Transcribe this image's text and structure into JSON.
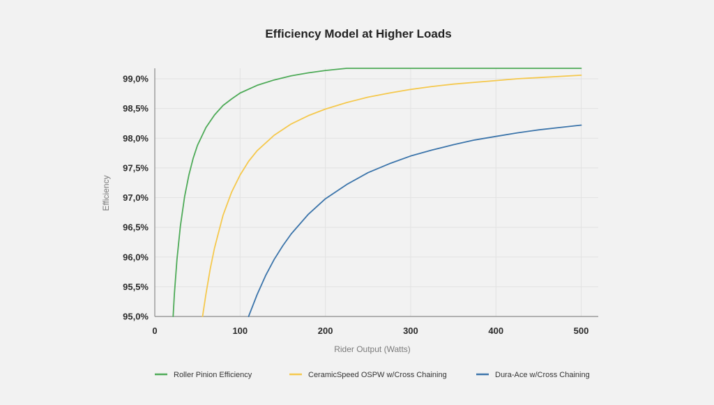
{
  "chart_data": {
    "type": "line",
    "title": "Efficiency Model at Higher Loads",
    "xlabel": "Rider Output (Watts)",
    "ylabel": "Efficiency",
    "xlim": [
      0,
      520
    ],
    "ylim": [
      95.0,
      99.2
    ],
    "x_ticks": [
      0,
      100,
      200,
      300,
      400,
      500
    ],
    "x_tick_labels": [
      "0",
      "100",
      "200",
      "300",
      "400",
      "500"
    ],
    "y_ticks": [
      95.0,
      95.5,
      96.0,
      96.5,
      97.0,
      97.5,
      98.0,
      98.5,
      99.0
    ],
    "y_tick_labels": [
      "95,0%",
      "95,5%",
      "96,0%",
      "96,5%",
      "97,0%",
      "97,5%",
      "98,0%",
      "98,5%",
      "99,0%"
    ],
    "grid": true,
    "legend_position": "bottom",
    "series": [
      {
        "name": "Roller Pinion Efficiency",
        "color": "#4daa57",
        "x": [
          21.5,
          23,
          26,
          30,
          35,
          40,
          45,
          50,
          60,
          70,
          80,
          90,
          100,
          120,
          140,
          160,
          180,
          200,
          225,
          250,
          275,
          300,
          325,
          350,
          375,
          400,
          425,
          450,
          475,
          500
        ],
        "y": [
          95.0,
          95.38,
          95.96,
          96.52,
          97.02,
          97.38,
          97.66,
          97.88,
          98.18,
          98.39,
          98.55,
          98.66,
          98.76,
          98.89,
          98.98,
          99.05,
          99.1,
          99.14,
          99.18,
          99.21,
          99.24,
          99.26,
          99.28,
          99.3,
          99.31,
          99.32,
          99.33,
          99.34,
          99.35,
          99.36
        ]
      },
      {
        "name": "CeramicSpeed OSPW w/Cross Chaining",
        "color": "#f5c84c",
        "x": [
          56,
          60,
          65,
          70,
          80,
          90,
          100,
          110,
          120,
          140,
          160,
          180,
          200,
          225,
          250,
          275,
          300,
          325,
          350,
          375,
          400,
          425,
          450,
          475,
          500
        ],
        "y": [
          95.0,
          95.38,
          95.8,
          96.15,
          96.7,
          97.09,
          97.38,
          97.61,
          97.79,
          98.05,
          98.24,
          98.38,
          98.49,
          98.6,
          98.69,
          98.76,
          98.82,
          98.87,
          98.91,
          98.94,
          98.97,
          99.0,
          99.02,
          99.04,
          99.06
        ]
      },
      {
        "name": "Dura-Ace w/Cross Chaining",
        "color": "#3b74aa",
        "x": [
          110,
          120,
          130,
          140,
          150,
          160,
          180,
          200,
          225,
          250,
          275,
          300,
          325,
          350,
          375,
          400,
          425,
          450,
          475,
          500
        ],
        "y": [
          95.0,
          95.37,
          95.69,
          95.96,
          96.19,
          96.39,
          96.72,
          96.98,
          97.22,
          97.42,
          97.57,
          97.7,
          97.8,
          97.89,
          97.97,
          98.03,
          98.09,
          98.14,
          98.18,
          98.22
        ]
      }
    ]
  }
}
